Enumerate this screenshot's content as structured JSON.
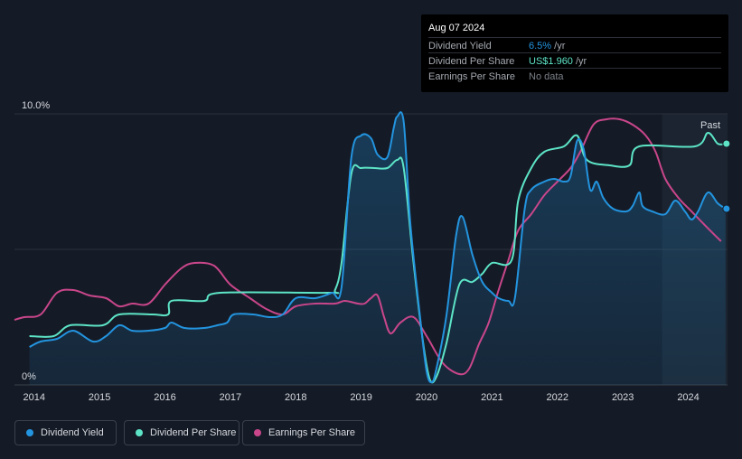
{
  "tooltip": {
    "date": "Aug 07 2024",
    "rows": [
      {
        "label": "Dividend Yield",
        "value": "6.5%",
        "unit": " /yr",
        "color": "#2394df"
      },
      {
        "label": "Dividend Per Share",
        "value": "US$1.960",
        "unit": " /yr",
        "color": "#5de4c7"
      },
      {
        "label": "Earnings Per Share",
        "value": "No data",
        "unit": "",
        "color": "#7b8088"
      }
    ]
  },
  "legend": [
    {
      "label": "Dividend Yield",
      "color": "#2394df"
    },
    {
      "label": "Dividend Per Share",
      "color": "#5de4c7"
    },
    {
      "label": "Earnings Per Share",
      "color": "#c9468b"
    }
  ],
  "past_label": "Past",
  "chart_data": {
    "type": "line",
    "y_tick_labels": [
      "10.0%",
      "0%"
    ],
    "ylim": [
      0,
      10
    ],
    "x_tick_labels": [
      "2014",
      "2015",
      "2016",
      "2017",
      "2018",
      "2019",
      "2020",
      "2021",
      "2022",
      "2023",
      "2024"
    ],
    "xlim": [
      2013.7,
      2024.6
    ],
    "past_region_start": 2023.6,
    "grid": true,
    "legend_position": "bottom-left",
    "series": [
      {
        "name": "Dividend Yield",
        "color": "#2394df",
        "unit": "%",
        "points": [
          [
            2013.93,
            1.4
          ],
          [
            2014.1,
            1.6
          ],
          [
            2014.35,
            1.7
          ],
          [
            2014.6,
            2.0
          ],
          [
            2014.9,
            1.6
          ],
          [
            2015.1,
            1.8
          ],
          [
            2015.3,
            2.2
          ],
          [
            2015.5,
            2.0
          ],
          [
            2015.75,
            2.0
          ],
          [
            2016.0,
            2.1
          ],
          [
            2016.1,
            2.3
          ],
          [
            2016.3,
            2.1
          ],
          [
            2016.6,
            2.1
          ],
          [
            2016.8,
            2.2
          ],
          [
            2016.95,
            2.3
          ],
          [
            2017.05,
            2.6
          ],
          [
            2017.35,
            2.6
          ],
          [
            2017.6,
            2.5
          ],
          [
            2017.8,
            2.6
          ],
          [
            2018.0,
            3.2
          ],
          [
            2018.3,
            3.2
          ],
          [
            2018.55,
            3.4
          ],
          [
            2018.7,
            3.6
          ],
          [
            2018.85,
            8.4
          ],
          [
            2019.0,
            9.2
          ],
          [
            2019.15,
            9.1
          ],
          [
            2019.25,
            8.5
          ],
          [
            2019.4,
            8.4
          ],
          [
            2019.5,
            9.5
          ],
          [
            2019.55,
            9.9
          ],
          [
            2019.65,
            9.7
          ],
          [
            2019.75,
            6.0
          ],
          [
            2019.9,
            2.5
          ],
          [
            2020.0,
            0.5
          ],
          [
            2020.08,
            0.1
          ],
          [
            2020.15,
            0.6
          ],
          [
            2020.3,
            2.5
          ],
          [
            2020.45,
            5.5
          ],
          [
            2020.55,
            6.2
          ],
          [
            2020.7,
            4.8
          ],
          [
            2020.85,
            3.8
          ],
          [
            2021.0,
            3.4
          ],
          [
            2021.1,
            3.2
          ],
          [
            2021.25,
            3.1
          ],
          [
            2021.35,
            3.2
          ],
          [
            2021.5,
            6.5
          ],
          [
            2021.6,
            7.2
          ],
          [
            2021.8,
            7.5
          ],
          [
            2021.95,
            7.6
          ],
          [
            2022.1,
            7.5
          ],
          [
            2022.2,
            7.7
          ],
          [
            2022.3,
            9.0
          ],
          [
            2022.4,
            8.7
          ],
          [
            2022.5,
            7.2
          ],
          [
            2022.6,
            7.5
          ],
          [
            2022.7,
            6.9
          ],
          [
            2022.85,
            6.5
          ],
          [
            2023.05,
            6.4
          ],
          [
            2023.15,
            6.6
          ],
          [
            2023.25,
            7.1
          ],
          [
            2023.3,
            6.6
          ],
          [
            2023.45,
            6.4
          ],
          [
            2023.65,
            6.3
          ],
          [
            2023.8,
            6.8
          ],
          [
            2023.95,
            6.4
          ],
          [
            2024.05,
            6.1
          ],
          [
            2024.15,
            6.4
          ],
          [
            2024.3,
            7.1
          ],
          [
            2024.45,
            6.7
          ],
          [
            2024.57,
            6.5
          ]
        ]
      },
      {
        "name": "Dividend Per Share",
        "color": "#5de4c7",
        "unit": "%",
        "points": [
          [
            2013.93,
            1.8
          ],
          [
            2014.3,
            1.8
          ],
          [
            2014.55,
            2.2
          ],
          [
            2015.05,
            2.2
          ],
          [
            2015.3,
            2.6
          ],
          [
            2015.8,
            2.6
          ],
          [
            2016.05,
            2.6
          ],
          [
            2016.1,
            3.1
          ],
          [
            2016.6,
            3.1
          ],
          [
            2016.85,
            3.4
          ],
          [
            2018.5,
            3.4
          ],
          [
            2018.6,
            3.5
          ],
          [
            2018.7,
            4.5
          ],
          [
            2018.85,
            7.8
          ],
          [
            2019.0,
            8.0
          ],
          [
            2019.2,
            8.0
          ],
          [
            2019.4,
            8.0
          ],
          [
            2019.55,
            8.3
          ],
          [
            2019.65,
            8.0
          ],
          [
            2019.8,
            4.5
          ],
          [
            2019.95,
            1.5
          ],
          [
            2020.05,
            0.2
          ],
          [
            2020.15,
            0.3
          ],
          [
            2020.3,
            1.5
          ],
          [
            2020.5,
            3.7
          ],
          [
            2020.7,
            3.8
          ],
          [
            2020.85,
            4.1
          ],
          [
            2021.0,
            4.5
          ],
          [
            2021.3,
            4.6
          ],
          [
            2021.4,
            6.8
          ],
          [
            2021.6,
            8.0
          ],
          [
            2021.8,
            8.6
          ],
          [
            2022.1,
            8.8
          ],
          [
            2022.3,
            9.2
          ],
          [
            2022.45,
            8.3
          ],
          [
            2022.8,
            8.1
          ],
          [
            2023.1,
            8.1
          ],
          [
            2023.25,
            8.8
          ],
          [
            2024.1,
            8.8
          ],
          [
            2024.3,
            9.3
          ],
          [
            2024.45,
            8.9
          ],
          [
            2024.57,
            8.9
          ]
        ]
      },
      {
        "name": "Earnings Per Share",
        "color": "#c9468b",
        "unit": "",
        "points": [
          [
            2013.7,
            2.4
          ],
          [
            2013.85,
            2.5
          ],
          [
            2014.1,
            2.6
          ],
          [
            2014.35,
            3.4
          ],
          [
            2014.6,
            3.5
          ],
          [
            2014.85,
            3.3
          ],
          [
            2015.1,
            3.2
          ],
          [
            2015.3,
            2.9
          ],
          [
            2015.5,
            3.0
          ],
          [
            2015.75,
            3.0
          ],
          [
            2016.0,
            3.7
          ],
          [
            2016.25,
            4.3
          ],
          [
            2016.45,
            4.5
          ],
          [
            2016.75,
            4.4
          ],
          [
            2017.0,
            3.7
          ],
          [
            2017.3,
            3.2
          ],
          [
            2017.55,
            2.8
          ],
          [
            2017.8,
            2.6
          ],
          [
            2018.0,
            2.9
          ],
          [
            2018.3,
            3.0
          ],
          [
            2018.6,
            3.0
          ],
          [
            2018.75,
            3.1
          ],
          [
            2018.95,
            3.0
          ],
          [
            2019.05,
            3.0
          ],
          [
            2019.15,
            3.2
          ],
          [
            2019.25,
            3.3
          ],
          [
            2019.35,
            2.5
          ],
          [
            2019.45,
            1.9
          ],
          [
            2019.6,
            2.3
          ],
          [
            2019.8,
            2.5
          ],
          [
            2020.0,
            1.8
          ],
          [
            2020.25,
            0.8
          ],
          [
            2020.5,
            0.4
          ],
          [
            2020.65,
            0.6
          ],
          [
            2020.8,
            1.5
          ],
          [
            2020.95,
            2.3
          ],
          [
            2021.1,
            3.5
          ],
          [
            2021.25,
            4.6
          ],
          [
            2021.4,
            5.7
          ],
          [
            2021.6,
            6.3
          ],
          [
            2021.8,
            7.0
          ],
          [
            2022.0,
            7.5
          ],
          [
            2022.2,
            8.0
          ],
          [
            2022.35,
            8.6
          ],
          [
            2022.55,
            9.6
          ],
          [
            2022.75,
            9.8
          ],
          [
            2022.95,
            9.8
          ],
          [
            2023.15,
            9.6
          ],
          [
            2023.35,
            9.2
          ],
          [
            2023.5,
            8.6
          ],
          [
            2023.65,
            7.6
          ],
          [
            2023.85,
            6.9
          ],
          [
            2024.05,
            6.4
          ],
          [
            2024.25,
            5.9
          ],
          [
            2024.5,
            5.3
          ]
        ]
      }
    ]
  }
}
